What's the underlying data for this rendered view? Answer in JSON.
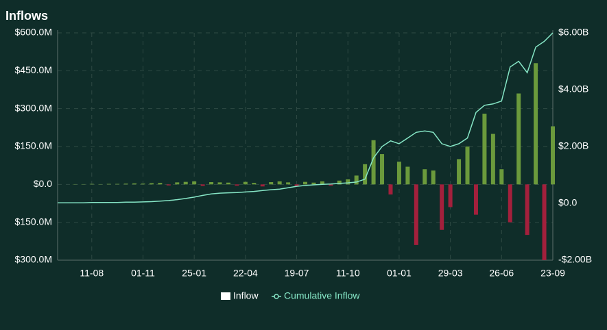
{
  "chart_data": {
    "type": "bar-line",
    "title": "Inflows",
    "categories": [
      null,
      null,
      null,
      null,
      "11-08",
      null,
      null,
      null,
      null,
      null,
      "01-11",
      null,
      null,
      null,
      null,
      null,
      "25-01",
      null,
      null,
      null,
      null,
      null,
      "22-04",
      null,
      null,
      null,
      null,
      null,
      "19-07",
      null,
      null,
      null,
      null,
      null,
      "11-10",
      null,
      null,
      null,
      null,
      null,
      "01-01",
      null,
      null,
      null,
      null,
      null,
      "29-03",
      null,
      null,
      null,
      null,
      null,
      "26-06",
      null,
      null,
      null,
      null,
      null,
      "23-09"
    ],
    "series": [
      {
        "name": "Inflow",
        "color": "#6b9a3c",
        "negative_color": "#a3203c",
        "values": [
          0,
          0,
          1,
          1,
          2,
          1,
          2,
          2,
          3,
          4,
          3,
          5,
          6,
          -4,
          8,
          10,
          12,
          -6,
          9,
          8,
          7,
          -5,
          10,
          6,
          -8,
          9,
          12,
          8,
          -6,
          10,
          7,
          12,
          -5,
          15,
          20,
          35,
          80,
          175,
          120,
          -40,
          90,
          70,
          -240,
          60,
          55,
          -180,
          -90,
          100,
          150,
          -120,
          280,
          200,
          60,
          -150,
          360,
          -200,
          480,
          -300,
          230
        ]
      },
      {
        "name": "Cumulative Inflow",
        "color": "#86e6c6",
        "axis": "y2",
        "values": [
          0.02,
          0.02,
          0.02,
          0.02,
          0.03,
          0.03,
          0.03,
          0.03,
          0.04,
          0.04,
          0.05,
          0.06,
          0.08,
          0.1,
          0.13,
          0.17,
          0.22,
          0.28,
          0.33,
          0.36,
          0.37,
          0.38,
          0.4,
          0.42,
          0.45,
          0.48,
          0.5,
          0.55,
          0.6,
          0.63,
          0.65,
          0.67,
          0.68,
          0.7,
          0.72,
          0.75,
          0.85,
          1.6,
          2.0,
          2.2,
          2.1,
          2.3,
          2.5,
          2.55,
          2.5,
          2.1,
          2.0,
          2.1,
          2.3,
          3.2,
          3.45,
          3.5,
          3.6,
          4.8,
          5.0,
          4.6,
          5.5,
          5.7,
          6.0
        ]
      }
    ],
    "ylim": [
      -300,
      600
    ],
    "yticks": [
      {
        "value": 600,
        "label": "$600.0M"
      },
      {
        "value": 450,
        "label": "$450.0M"
      },
      {
        "value": 300,
        "label": "$300.0M"
      },
      {
        "value": 150,
        "label": "$150.0M"
      },
      {
        "value": 0,
        "label": "$0.0"
      },
      {
        "value": -150,
        "label": "$150.0M"
      },
      {
        "value": -300,
        "label": "$300.0M"
      }
    ],
    "y2lim": [
      -2,
      6
    ],
    "y2ticks": [
      {
        "value": 6,
        "label": "$6.00B"
      },
      {
        "value": 4,
        "label": "$4.00B"
      },
      {
        "value": 2,
        "label": "$2.00B"
      },
      {
        "value": 0,
        "label": "$0.0"
      },
      {
        "value": -2,
        "label": "-$2.00B"
      }
    ],
    "grid": true
  }
}
